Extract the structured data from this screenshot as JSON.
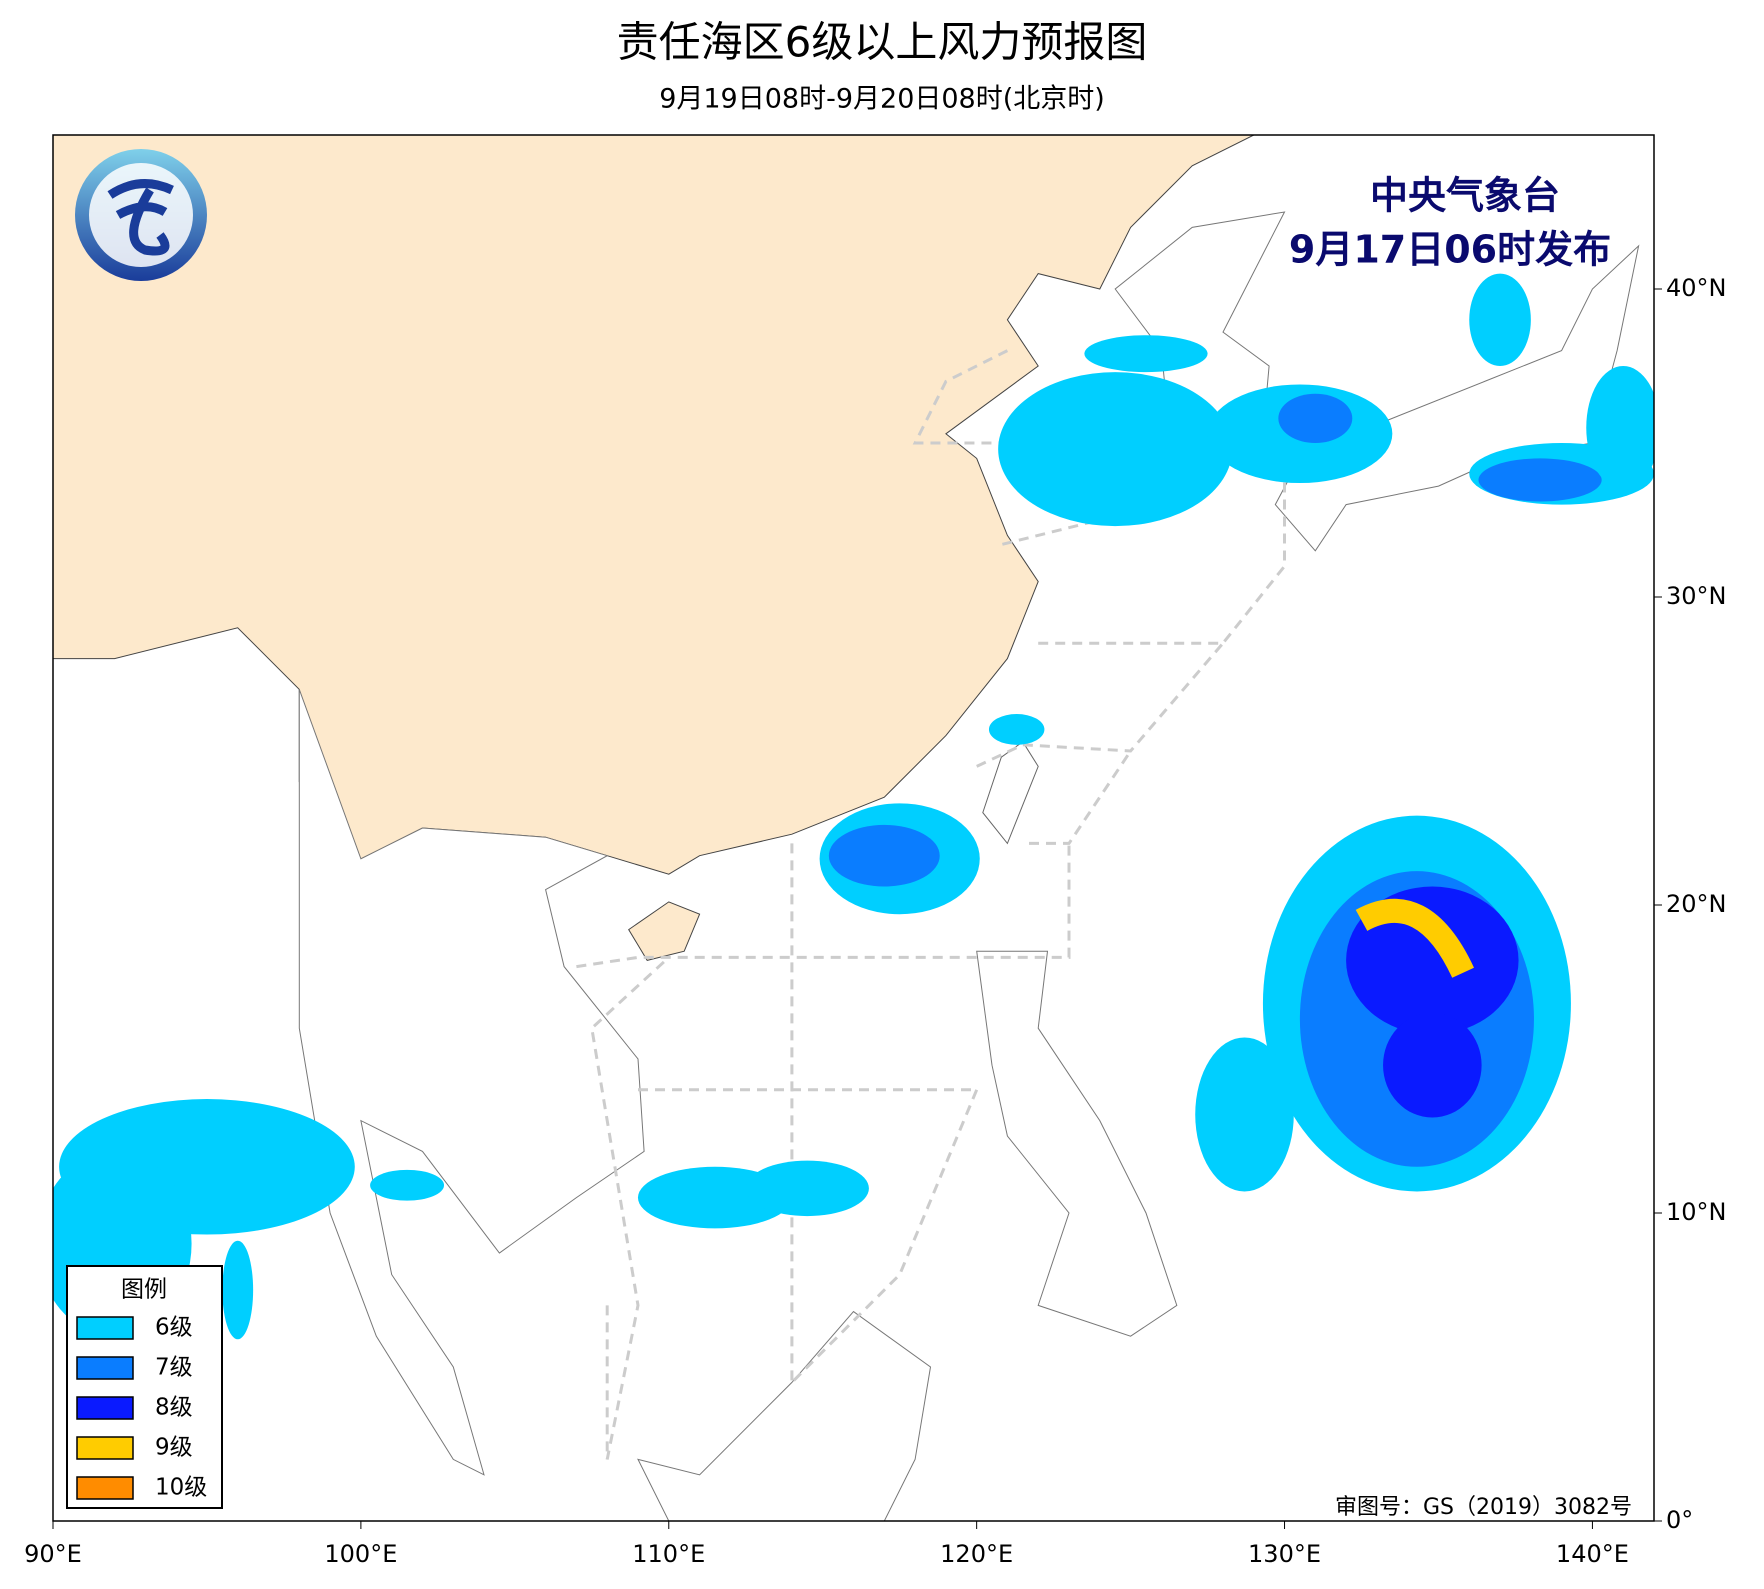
{
  "header": {
    "title": "责任海区6级以上风力预报图",
    "subtitle": "9月19日08时-9月20日08时(北京时)"
  },
  "issuer": {
    "name": "中央气象台",
    "issued": "9月17日06时发布"
  },
  "map": {
    "xlim": [
      90,
      142
    ],
    "ylim": [
      0,
      45
    ],
    "xticks": [
      {
        "value": 90,
        "label": "90°E"
      },
      {
        "value": 100,
        "label": "100°E"
      },
      {
        "value": 110,
        "label": "110°E"
      },
      {
        "value": 120,
        "label": "120°E"
      },
      {
        "value": 130,
        "label": "130°E"
      },
      {
        "value": 140,
        "label": "140°E"
      }
    ],
    "yticks": [
      {
        "value": 0,
        "label": "0°"
      },
      {
        "value": 10,
        "label": "10°N"
      },
      {
        "value": 20,
        "label": "20°N"
      },
      {
        "value": 30,
        "label": "30°N"
      },
      {
        "value": 40,
        "label": "40°N"
      }
    ]
  },
  "legend": {
    "title": "图例",
    "items": [
      {
        "label": "6级",
        "color": "#00cfff"
      },
      {
        "label": "7级",
        "color": "#0a7dff"
      },
      {
        "label": "8级",
        "color": "#0a1aff"
      },
      {
        "label": "9级",
        "color": "#ffcc00"
      },
      {
        "label": "10级",
        "color": "#ff8c00"
      }
    ]
  },
  "footer": {
    "approval": "审图号：GS（2019）3082号"
  }
}
